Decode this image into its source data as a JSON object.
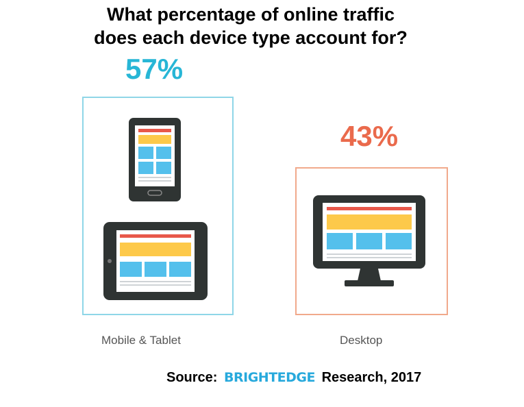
{
  "title": {
    "line1": "What percentage of online traffic",
    "line2": "does each device type account for?"
  },
  "chart_data": {
    "type": "bar",
    "title": "What percentage of online traffic does each device type account for?",
    "categories": [
      "Mobile & Tablet",
      "Desktop"
    ],
    "values": [
      57,
      43
    ],
    "value_labels": [
      "57%",
      "43%"
    ],
    "unit": "%",
    "colors": [
      "#27b6d6",
      "#ea6a4c"
    ],
    "icons": [
      "phone-icon",
      "tablet-icon",
      "desktop-monitor-icon"
    ]
  },
  "source": {
    "prefix": "Source:",
    "brand": "BRIGHTEDGE",
    "suffix": "Research, 2017"
  }
}
